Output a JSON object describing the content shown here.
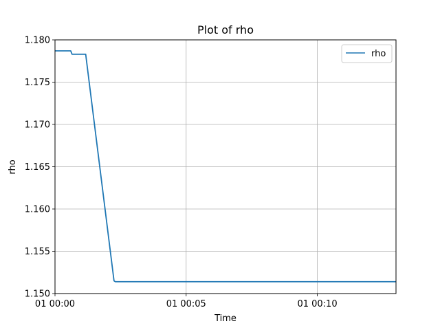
{
  "chart_data": {
    "type": "line",
    "title": "Plot of rho",
    "xlabel": "Time",
    "ylabel": "rho",
    "x_unit": "minutes",
    "xlim": [
      0,
      13
    ],
    "ylim": [
      1.15,
      1.18
    ],
    "x_ticks": [
      {
        "value": 0,
        "label": "01 00:00"
      },
      {
        "value": 5,
        "label": "01 00:05"
      },
      {
        "value": 10,
        "label": "01 00:10"
      }
    ],
    "y_ticks": [
      {
        "value": 1.15,
        "label": "1.150"
      },
      {
        "value": 1.155,
        "label": "1.155"
      },
      {
        "value": 1.16,
        "label": "1.160"
      },
      {
        "value": 1.165,
        "label": "1.165"
      },
      {
        "value": 1.17,
        "label": "1.170"
      },
      {
        "value": 1.175,
        "label": "1.175"
      },
      {
        "value": 1.18,
        "label": "1.180"
      }
    ],
    "grid": true,
    "legend_position": "top-right",
    "series": [
      {
        "name": "rho",
        "color": "#1f77b4",
        "x": [
          0,
          0.6,
          0.65,
          1.15,
          1.17,
          2.25,
          2.3,
          13
        ],
        "y": [
          1.1787,
          1.1787,
          1.1783,
          1.1783,
          1.1783,
          1.1515,
          1.1514,
          1.1514
        ]
      }
    ]
  }
}
